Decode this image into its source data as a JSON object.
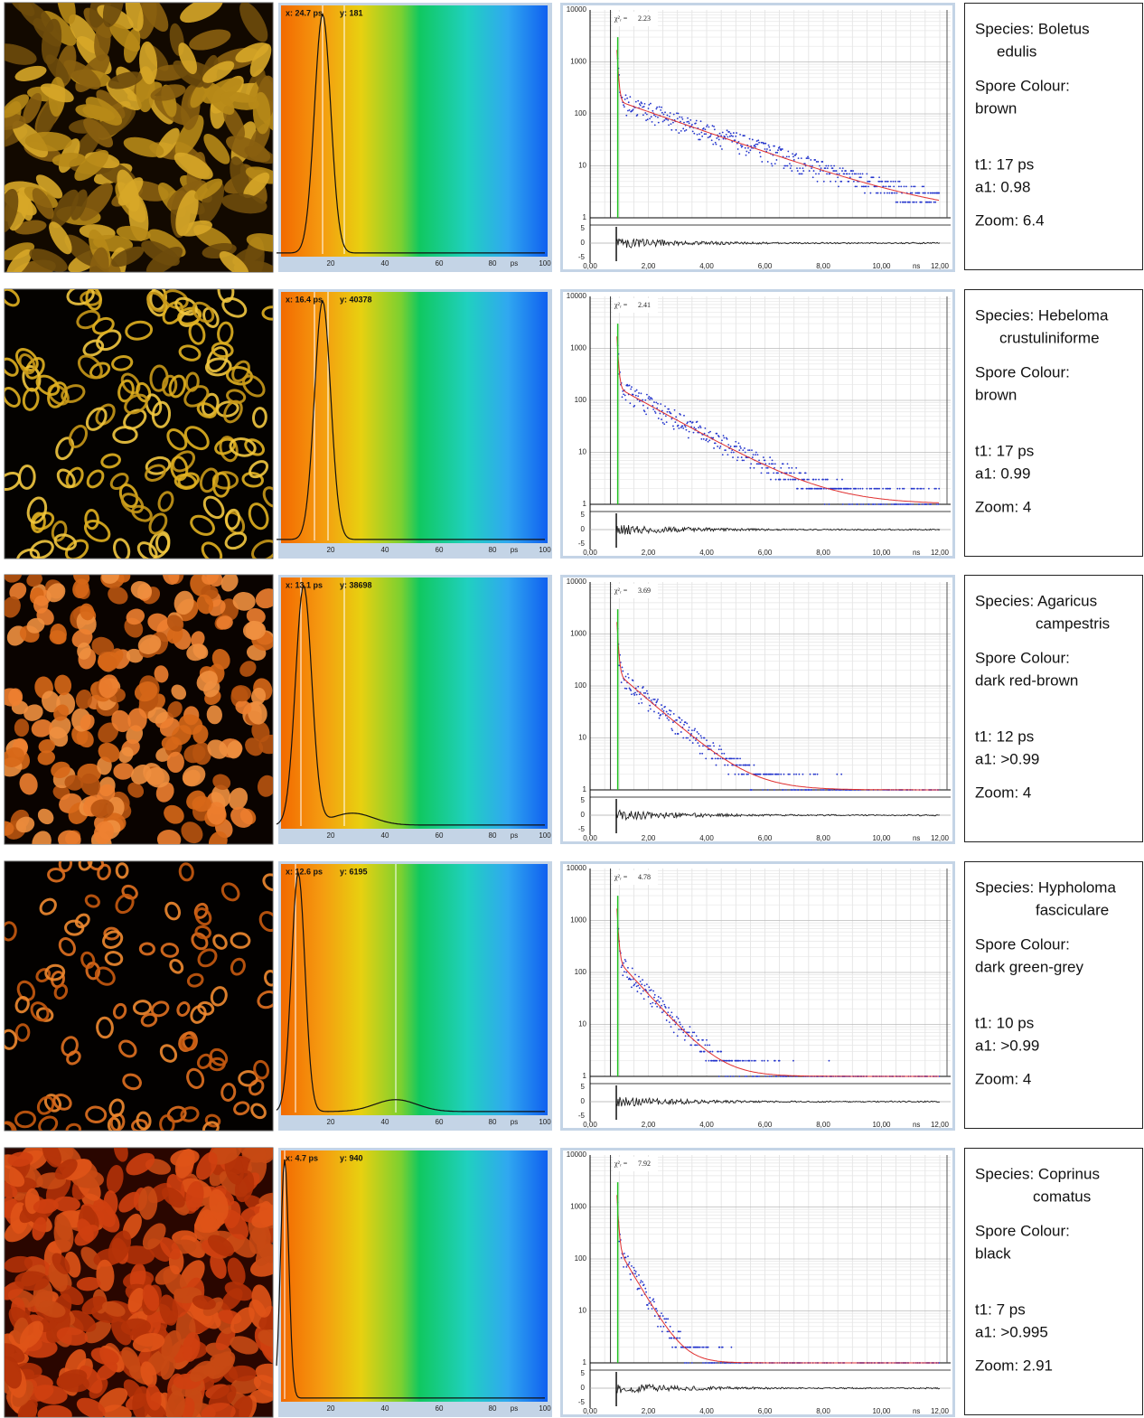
{
  "shared": {
    "histogram_xticks": [
      "20",
      "40",
      "60",
      "80",
      "ps",
      "100"
    ],
    "decay_yticks": [
      "10000",
      "1000",
      "100",
      "10",
      "1"
    ],
    "residual_ticks": [
      "5",
      "0",
      "-5"
    ],
    "decay_xticks": [
      "0,00",
      "2,00",
      "4,00",
      "6,00",
      "8,00",
      "10,00",
      "ns",
      "12,00"
    ],
    "chi_symbol": "χ²ᵣ ="
  },
  "rows": [
    {
      "histogram": {
        "cursor_x": "x: 24.7 ps",
        "cursor_y": "y: 181"
      },
      "decay": {
        "chi2": "2.23"
      },
      "info": {
        "species": "Species: Boletus",
        "species_2": "edulis",
        "colour_label": "Spore Colour:",
        "colour": "brown",
        "t1": "t1: 17 ps",
        "a1": "a1: 0.98",
        "zoom": "Zoom: 6.4"
      }
    },
    {
      "histogram": {
        "cursor_x": "x: 16.4 ps",
        "cursor_y": "y: 40378"
      },
      "decay": {
        "chi2": "2.41"
      },
      "info": {
        "species": "Species: Hebeloma",
        "species_2": "crustuliniforme",
        "colour_label": "Spore Colour:",
        "colour": "brown",
        "t1": "t1: 17 ps",
        "a1": "a1: 0.99",
        "zoom": "Zoom: 4"
      }
    },
    {
      "histogram": {
        "cursor_x": "x: 13.1 ps",
        "cursor_y": "y: 38698"
      },
      "decay": {
        "chi2": "3.69"
      },
      "info": {
        "species": "Species: Agaricus",
        "species_2": "campestris",
        "colour_label": "Spore Colour:",
        "colour": "dark red-brown",
        "t1": "t1: 12 ps",
        "a1": "a1: >0.99",
        "zoom": "Zoom: 4"
      }
    },
    {
      "histogram": {
        "cursor_x": "x: 12.6 ps",
        "cursor_y": "y: 6195"
      },
      "decay": {
        "chi2": "4.78"
      },
      "info": {
        "species": "Species: Hypholoma",
        "species_2": "fasciculare",
        "colour_label": "Spore Colour:",
        "colour": "dark green-grey",
        "t1": "t1: 10 ps",
        "a1": "a1: >0.99",
        "zoom": "Zoom: 4"
      }
    },
    {
      "histogram": {
        "cursor_x": "x: 4.7 ps",
        "cursor_y": "y: 940"
      },
      "decay": {
        "chi2": "7.92"
      },
      "info": {
        "species": "Species: Coprinus",
        "species_2": "comatus",
        "colour_label": "Spore Colour:",
        "colour": "black",
        "t1": "t1: 7 ps",
        "a1": "a1: >0.995",
        "zoom": "Zoom: 2.91"
      }
    }
  ]
}
